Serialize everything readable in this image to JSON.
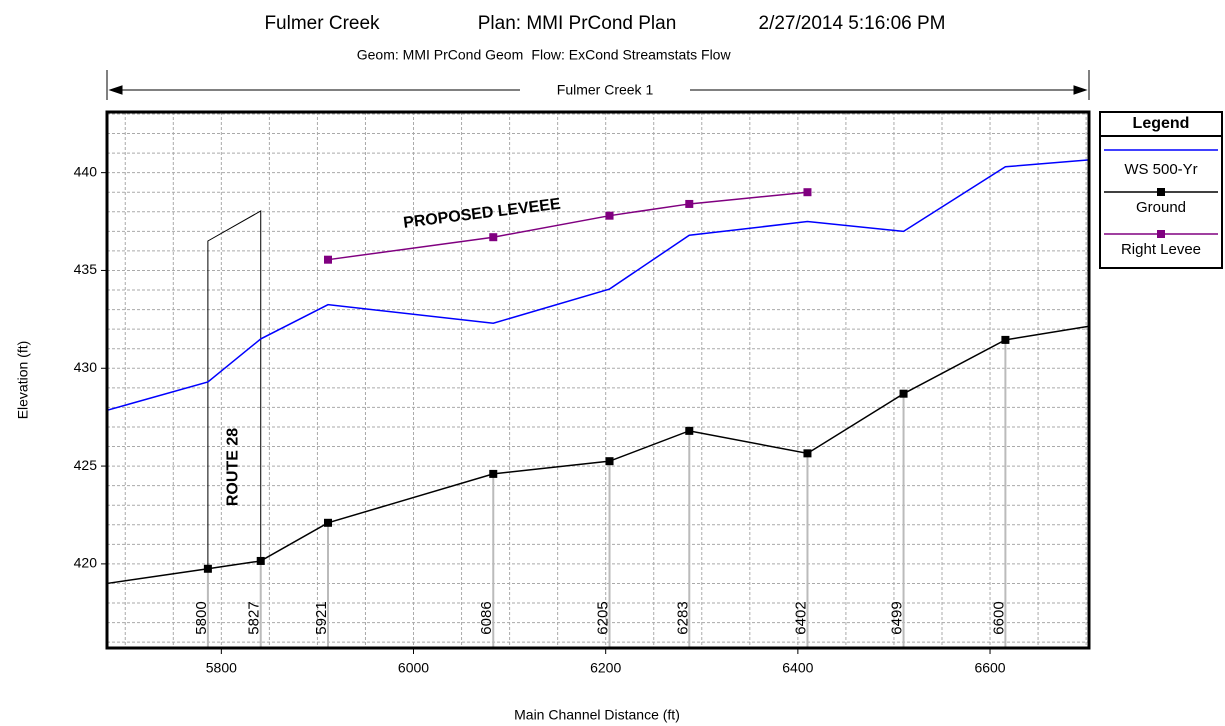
{
  "chart_data": {
    "type": "line",
    "title": [
      "Fulmer Creek",
      "Plan: MMI PrCond Plan",
      "2/27/2014  5:16:06 PM"
    ],
    "subtitle": [
      "Geom: MMI PrCond Geom",
      "Flow: ExCond Streamstats Flow"
    ],
    "reach_label": "Fulmer Creek 1",
    "x_label": "Main Channel Distance (ft)",
    "y_label": "Elevation (ft)",
    "xlim": [
      5681,
      6703
    ],
    "ylim": [
      415.7,
      443.1
    ],
    "xticks": [
      5800,
      6000,
      6200,
      6400,
      6600
    ],
    "yticks": [
      420,
      425,
      430,
      435,
      440
    ],
    "x_minor_ticks": [
      5700,
      5750,
      5800,
      5850,
      5900,
      5950,
      6000,
      6050,
      6100,
      6150,
      6200,
      6250,
      6300,
      6350,
      6400,
      6450,
      6500,
      6550,
      6600,
      6650,
      6700
    ],
    "y_minor_ticks": [
      416,
      417,
      418,
      419,
      420,
      421,
      422,
      423,
      424,
      425,
      426,
      427,
      428,
      429,
      430,
      431,
      432,
      433,
      434,
      435,
      436,
      437,
      438,
      439,
      440,
      441,
      442,
      443
    ],
    "grid": true,
    "legend_title": "Legend",
    "series": [
      {
        "name": "WS  500-Yr",
        "color": "#0000ff",
        "markers": false,
        "x": [
          5681,
          5786,
          5841,
          5911,
          6083,
          6204,
          6287,
          6410,
          6510,
          6616,
          6703
        ],
        "values": [
          427.85,
          429.3,
          431.5,
          433.25,
          432.3,
          434.05,
          436.8,
          437.5,
          437.0,
          440.3,
          440.65
        ]
      },
      {
        "name": "Ground",
        "color": "#000000",
        "markers": true,
        "x": [
          5681,
          5786,
          5841,
          5911,
          6083,
          6204,
          6287,
          6410,
          6510,
          6616,
          6703
        ],
        "values": [
          419.0,
          419.75,
          420.15,
          422.1,
          424.6,
          425.25,
          426.8,
          425.65,
          428.7,
          431.45,
          432.15
        ]
      },
      {
        "name": "Right Levee",
        "color": "#800080",
        "markers": true,
        "x": [
          5911,
          6083,
          6204,
          6287,
          6410
        ],
        "values": [
          435.55,
          436.7,
          437.8,
          438.4,
          439.0
        ]
      }
    ],
    "stations": [
      "5800",
      "5827",
      "5921",
      "6086",
      "6205",
      "6283",
      "6402",
      "6499",
      "6600"
    ],
    "annotations": [
      "ROUTE 28",
      "PROPOSED LEVEEE"
    ]
  }
}
